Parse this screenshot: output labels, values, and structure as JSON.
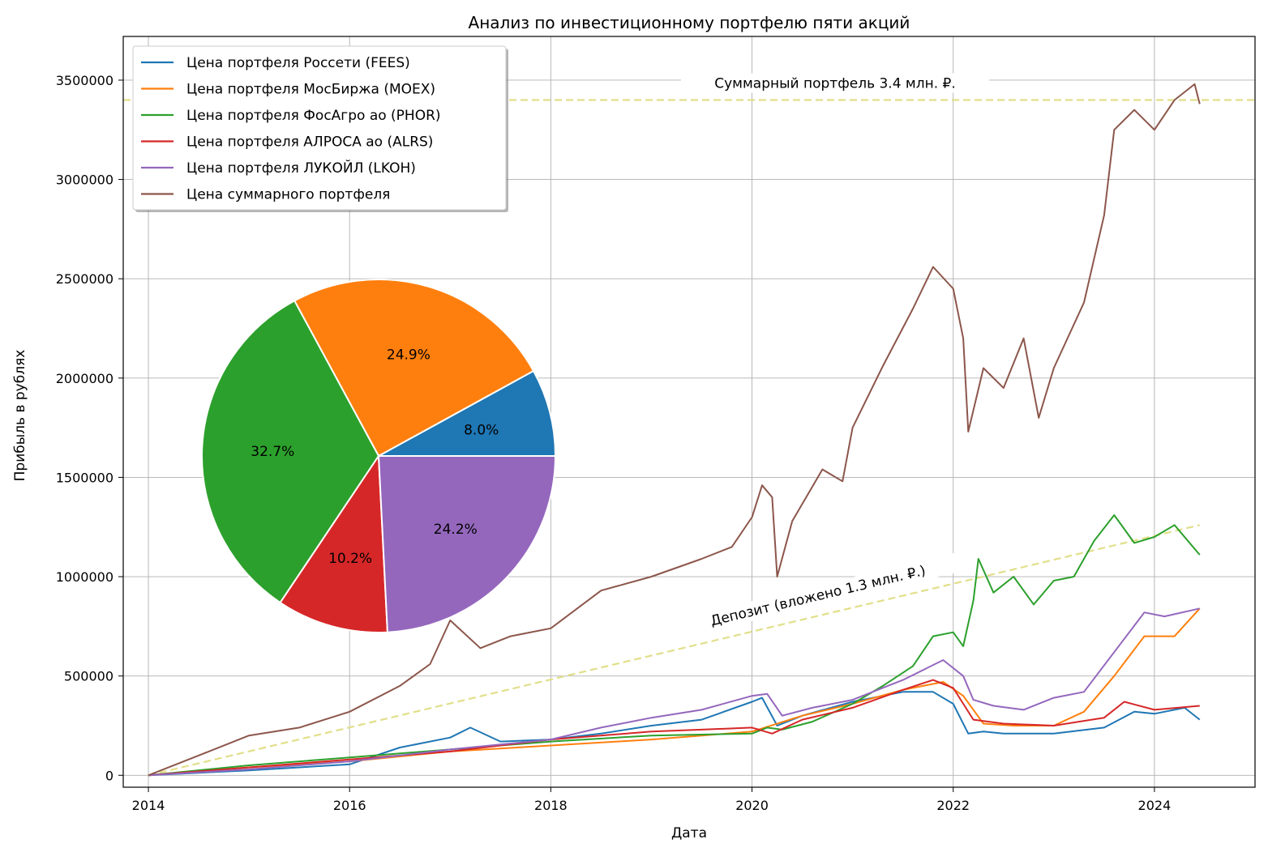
{
  "chart_data": {
    "type": "line",
    "title": "Анализ по инвестиционному портфелю пяти акций",
    "xlabel": "Дата",
    "ylabel": "Прибыль в рублях",
    "xlim": [
      2013.75,
      2025.0
    ],
    "ylim": [
      -60000,
      3720000
    ],
    "xticks": [
      "2014",
      "2016",
      "2018",
      "2020",
      "2022",
      "2024"
    ],
    "yticks": [
      "0",
      "500000",
      "1000000",
      "1500000",
      "2000000",
      "2500000",
      "3000000",
      "3500000"
    ],
    "grid": true,
    "legend_position": "top-left",
    "x_units": "year (decimal)",
    "series": [
      {
        "name": "Цена портфеля Россети (FEES)",
        "color": "#1f77b4",
        "x": [
          2014.0,
          2015.0,
          2016.0,
          2016.5,
          2017.0,
          2017.2,
          2017.5,
          2018.0,
          2018.5,
          2019.0,
          2019.5,
          2020.0,
          2020.1,
          2020.25,
          2020.5,
          2021.0,
          2021.5,
          2021.8,
          2022.0,
          2022.15,
          2022.3,
          2022.5,
          2023.0,
          2023.5,
          2023.8,
          2024.0,
          2024.3,
          2024.45
        ],
        "y": [
          0,
          25000,
          55000,
          140000,
          190000,
          240000,
          170000,
          180000,
          210000,
          250000,
          280000,
          370000,
          390000,
          250000,
          300000,
          370000,
          420000,
          420000,
          360000,
          210000,
          220000,
          210000,
          210000,
          240000,
          320000,
          310000,
          340000,
          280000
        ]
      },
      {
        "name": "Цена портфеля МосБиржа (MOEX)",
        "color": "#ff7f0e",
        "x": [
          2014.0,
          2015.0,
          2016.0,
          2017.0,
          2018.0,
          2019.0,
          2019.5,
          2020.0,
          2020.5,
          2021.0,
          2021.5,
          2021.9,
          2022.1,
          2022.3,
          2022.6,
          2023.0,
          2023.3,
          2023.6,
          2023.9,
          2024.2,
          2024.45
        ],
        "y": [
          0,
          40000,
          70000,
          120000,
          150000,
          180000,
          200000,
          220000,
          300000,
          360000,
          430000,
          470000,
          400000,
          260000,
          250000,
          250000,
          320000,
          500000,
          700000,
          700000,
          840000
        ]
      },
      {
        "name": "Цена портфеля ФосАгро ао (PHOR)",
        "color": "#2ca02c",
        "x": [
          2014.0,
          2015.0,
          2016.0,
          2017.0,
          2018.0,
          2019.0,
          2020.0,
          2020.15,
          2020.3,
          2020.6,
          2021.0,
          2021.3,
          2021.6,
          2021.8,
          2022.0,
          2022.1,
          2022.2,
          2022.25,
          2022.4,
          2022.6,
          2022.8,
          2023.0,
          2023.2,
          2023.4,
          2023.6,
          2023.8,
          2024.0,
          2024.2,
          2024.45
        ],
        "y": [
          0,
          50000,
          90000,
          130000,
          170000,
          200000,
          210000,
          240000,
          230000,
          270000,
          360000,
          450000,
          550000,
          700000,
          720000,
          650000,
          880000,
          1090000,
          920000,
          1000000,
          860000,
          980000,
          1000000,
          1180000,
          1310000,
          1170000,
          1200000,
          1260000,
          1110000
        ]
      },
      {
        "name": "Цена портфеля АЛРОСА ао (ALRS)",
        "color": "#d62728",
        "x": [
          2014.0,
          2015.0,
          2016.0,
          2017.0,
          2018.0,
          2019.0,
          2019.5,
          2020.0,
          2020.2,
          2020.5,
          2021.0,
          2021.5,
          2021.8,
          2022.0,
          2022.2,
          2022.5,
          2023.0,
          2023.5,
          2023.7,
          2024.0,
          2024.45
        ],
        "y": [
          0,
          40000,
          80000,
          120000,
          180000,
          220000,
          230000,
          240000,
          210000,
          280000,
          340000,
          430000,
          480000,
          440000,
          280000,
          260000,
          250000,
          290000,
          370000,
          330000,
          350000
        ]
      },
      {
        "name": "Цена портфеля ЛУКОЙЛ (LKOH)",
        "color": "#9467bd",
        "x": [
          2014.0,
          2015.0,
          2016.0,
          2017.0,
          2018.0,
          2018.5,
          2019.0,
          2019.5,
          2020.0,
          2020.15,
          2020.3,
          2020.6,
          2021.0,
          2021.5,
          2021.9,
          2022.1,
          2022.2,
          2022.4,
          2022.7,
          2023.0,
          2023.3,
          2023.6,
          2023.9,
          2024.1,
          2024.45
        ],
        "y": [
          0,
          30000,
          70000,
          130000,
          180000,
          240000,
          290000,
          330000,
          400000,
          410000,
          300000,
          340000,
          380000,
          480000,
          580000,
          500000,
          380000,
          350000,
          330000,
          390000,
          420000,
          620000,
          820000,
          800000,
          840000
        ]
      },
      {
        "name": "Цена суммарного портфеля",
        "color": "#8c564b",
        "x": [
          2014.0,
          2014.5,
          2015.0,
          2015.5,
          2016.0,
          2016.5,
          2016.8,
          2017.0,
          2017.3,
          2017.6,
          2018.0,
          2018.5,
          2019.0,
          2019.5,
          2019.8,
          2020.0,
          2020.1,
          2020.2,
          2020.25,
          2020.4,
          2020.7,
          2020.9,
          2021.0,
          2021.3,
          2021.6,
          2021.8,
          2022.0,
          2022.1,
          2022.15,
          2022.3,
          2022.5,
          2022.7,
          2022.85,
          2023.0,
          2023.3,
          2023.5,
          2023.6,
          2023.8,
          2024.0,
          2024.2,
          2024.4,
          2024.45
        ],
        "y": [
          0,
          100000,
          200000,
          240000,
          320000,
          450000,
          560000,
          780000,
          640000,
          700000,
          740000,
          930000,
          1000000,
          1090000,
          1150000,
          1300000,
          1460000,
          1400000,
          1000000,
          1280000,
          1540000,
          1480000,
          1750000,
          2060000,
          2350000,
          2560000,
          2450000,
          2200000,
          1730000,
          2050000,
          1950000,
          2200000,
          1800000,
          2050000,
          2380000,
          2820000,
          3250000,
          3350000,
          3250000,
          3400000,
          3480000,
          3380000
        ]
      }
    ],
    "reference_lines": [
      {
        "label": "Суммарный портфель 3.4 млн. ₽.",
        "color": "#e1df8a",
        "y": 3400000
      },
      {
        "label": "Депозит (вложено 1.3 млн. ₽.)",
        "color": "#e1df8a",
        "x": [
          2014.0,
          2024.45
        ],
        "y": [
          0,
          1260000
        ]
      }
    ],
    "pie": {
      "labels": [
        "8.0%",
        "24.9%",
        "32.7%",
        "10.2%",
        "24.2%"
      ],
      "values": [
        8.0,
        24.9,
        32.7,
        10.2,
        24.2
      ],
      "colors": [
        "#1f77b4",
        "#ff7f0e",
        "#2ca02c",
        "#d62728",
        "#9467bd"
      ]
    }
  }
}
